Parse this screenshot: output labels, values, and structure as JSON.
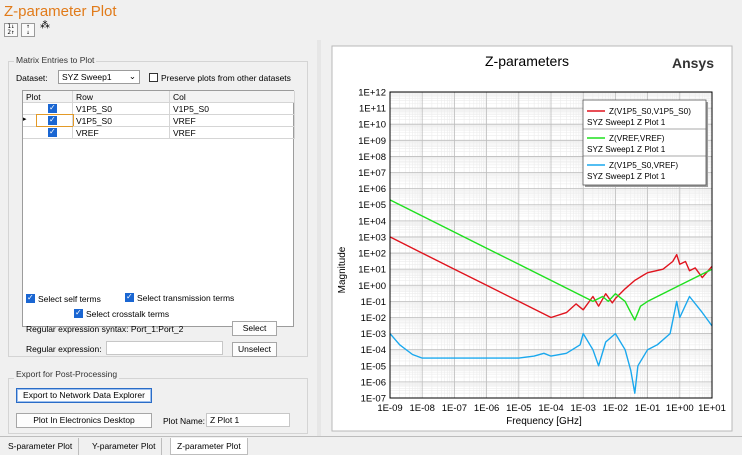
{
  "window": {
    "title": "Z-parameter Plot"
  },
  "toolbar": {
    "icons": [
      "sort-icon",
      "filter-icon",
      "network-icon"
    ]
  },
  "matrix": {
    "group_label": "Matrix Entries to Plot",
    "dataset_label": "Dataset:",
    "dataset_value": "SYZ Sweep1",
    "preserve_label": "Preserve plots from other datasets",
    "preserve_checked": false,
    "columns": [
      "Plot",
      "Row",
      "Col"
    ],
    "rows": [
      {
        "plot": true,
        "row": "V1P5_S0",
        "col": "V1P5_S0"
      },
      {
        "plot": true,
        "row": "V1P5_S0",
        "col": "VREF"
      },
      {
        "plot": true,
        "row": "VREF",
        "col": "VREF"
      }
    ],
    "select_self": "Select self terms",
    "select_transmission": "Select transmission terms",
    "select_crosstalk": "Select crosstalk terms",
    "regex_syntax": "Regular expression syntax: Port_1:Port_2",
    "select_button": "Select",
    "regex_label": "Regular expression:",
    "regex_value": "",
    "unselect_button": "Unselect"
  },
  "export": {
    "group_label": "Export for Post-Processing",
    "export_button": "Export to Network Data Explorer",
    "plot_button": "Plot In Electronics Desktop",
    "plot_name_label": "Plot Name:",
    "plot_name_value": "Z Plot 1"
  },
  "tabs": [
    "S-parameter Plot",
    "Y-parameter Plot",
    "Z-parameter Plot"
  ],
  "active_tab": 2,
  "chart_data": {
    "type": "line",
    "title": "Z-parameters",
    "brand": "Ansys",
    "xlabel": "Frequency [GHz]",
    "ylabel": "Magnitude",
    "xscale": "log",
    "yscale": "log",
    "xlim": [
      1e-09,
      10
    ],
    "ylim": [
      1e-07,
      1000000000000.0
    ],
    "x_ticks": [
      "1E-09",
      "1E-08",
      "1E-07",
      "1E-06",
      "1E-05",
      "1E-04",
      "1E-03",
      "1E-02",
      "1E-01",
      "1E+00",
      "1E+01"
    ],
    "y_ticks": [
      "1E-07",
      "1E-06",
      "1E-05",
      "1E-04",
      "1E-03",
      "1E-02",
      "1E-01",
      "1E+00",
      "1E+01",
      "1E+02",
      "1E+03",
      "1E+04",
      "1E+05",
      "1E+06",
      "1E+07",
      "1E+08",
      "1E+09",
      "1E+10",
      "1E+11",
      "1E+12"
    ],
    "grid": true,
    "legend_position": "top-right",
    "series": [
      {
        "name": "Z(V1P5_S0,V1P5_S0)",
        "sub": "SYZ Sweep1 Z Plot 1",
        "color": "#e0141e",
        "x": [
          1e-09,
          1e-08,
          1e-07,
          1e-06,
          1e-05,
          0.0001,
          0.0003,
          0.0006,
          0.001,
          0.002,
          0.003,
          0.005,
          0.008,
          0.01,
          0.02,
          0.04,
          0.07,
          0.1,
          0.3,
          0.6,
          0.8,
          1,
          1.5,
          2,
          3,
          5,
          10
        ],
        "y": [
          1000,
          100,
          10,
          1,
          0.1,
          0.01,
          0.02,
          0.07,
          0.03,
          0.2,
          0.05,
          0.3,
          0.08,
          0.15,
          0.6,
          2,
          4,
          6,
          10,
          30,
          80,
          20,
          30,
          8,
          12,
          3,
          15
        ]
      },
      {
        "name": "Z(VREF,VREF)",
        "sub": "SYZ Sweep1 Z Plot 1",
        "color": "#1ee01e",
        "x": [
          1e-09,
          1e-08,
          1e-07,
          1e-06,
          1e-05,
          0.0001,
          0.001,
          0.002,
          0.004,
          0.006,
          0.01,
          0.02,
          0.03,
          0.04,
          0.06,
          0.1,
          1,
          10
        ],
        "y": [
          200000,
          20000,
          2000,
          200,
          20,
          2,
          0.2,
          0.1,
          0.2,
          0.1,
          0.3,
          0.1,
          0.02,
          0.007,
          0.05,
          0.1,
          1,
          10
        ]
      },
      {
        "name": "Z(V1P5_S0,VREF)",
        "sub": "SYZ Sweep1 Z Plot 1",
        "color": "#1aa8ee",
        "x": [
          1e-09,
          2e-09,
          5e-09,
          1e-08,
          5e-08,
          1e-07,
          1e-06,
          1e-05,
          3e-05,
          6e-05,
          0.0001,
          0.0003,
          0.0008,
          0.001,
          0.002,
          0.003,
          0.005,
          0.01,
          0.02,
          0.03,
          0.04,
          0.05,
          0.1,
          0.2,
          0.5,
          0.8,
          1,
          2,
          5,
          10
        ],
        "y": [
          0.001,
          0.0002,
          5e-05,
          3e-05,
          3e-05,
          3e-05,
          3e-05,
          3e-05,
          4e-05,
          6e-05,
          4e-05,
          6e-05,
          0.0002,
          0.001,
          0.0001,
          1e-05,
          0.0003,
          0.001,
          0.0001,
          5e-06,
          2e-07,
          1e-05,
          0.0001,
          0.0002,
          0.001,
          0.1,
          0.01,
          0.2,
          0.02,
          0.003
        ]
      }
    ]
  }
}
